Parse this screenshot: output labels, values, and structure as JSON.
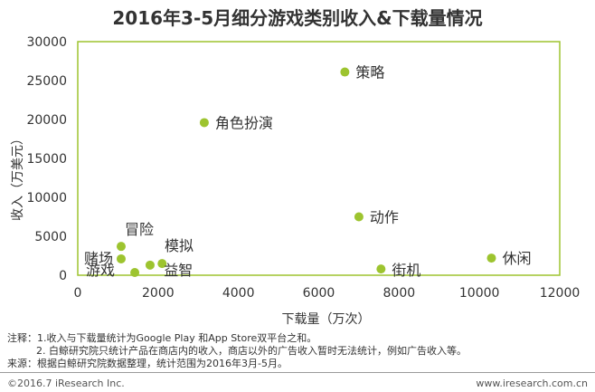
{
  "chart_data": {
    "type": "scatter",
    "title": "2016年3-5月细分游戏类别收入&下载量情况",
    "xlabel": "下载量（万次）",
    "ylabel": "收入（万美元）",
    "xlim": [
      0,
      12000
    ],
    "ylim": [
      0,
      30000
    ],
    "xticks": [
      0,
      2000,
      4000,
      6000,
      8000,
      10000,
      12000
    ],
    "yticks": [
      0,
      5000,
      10000,
      15000,
      20000,
      25000,
      30000
    ],
    "point_color": "#9dc42f",
    "frame_color": "#9dc42f",
    "points": [
      {
        "label": "策略",
        "x": 6650,
        "y": 26100
      },
      {
        "label": "角色扮演",
        "x": 3150,
        "y": 19600
      },
      {
        "label": "动作",
        "x": 7000,
        "y": 7500
      },
      {
        "label": "休闲",
        "x": 10300,
        "y": 2200
      },
      {
        "label": "街机",
        "x": 7550,
        "y": 800
      },
      {
        "label": "冒险",
        "x": 1080,
        "y": 3700
      },
      {
        "label": "赌场",
        "x": 1080,
        "y": 2100
      },
      {
        "label": "游戏",
        "x": 1420,
        "y": 350
      },
      {
        "label": "模拟",
        "x": 1800,
        "y": 1300
      },
      {
        "label": "益智",
        "x": 2100,
        "y": 1500
      }
    ]
  },
  "notes": {
    "line1": "注释：1.收入与下载量统计为Google Play 和App Store双平台之和。",
    "line2": "2. 白鲸研究院只统计产品在商店内的收入，商店以外的广告收入暂时无法统计，例如广告收入等。",
    "line3": "来源：根据白鲸研究院数据整理，统计范围为2016年3月-5月。"
  },
  "footer": {
    "copyright": "©2016.7 iResearch Inc.",
    "website": "www.iresearch.com.cn"
  }
}
